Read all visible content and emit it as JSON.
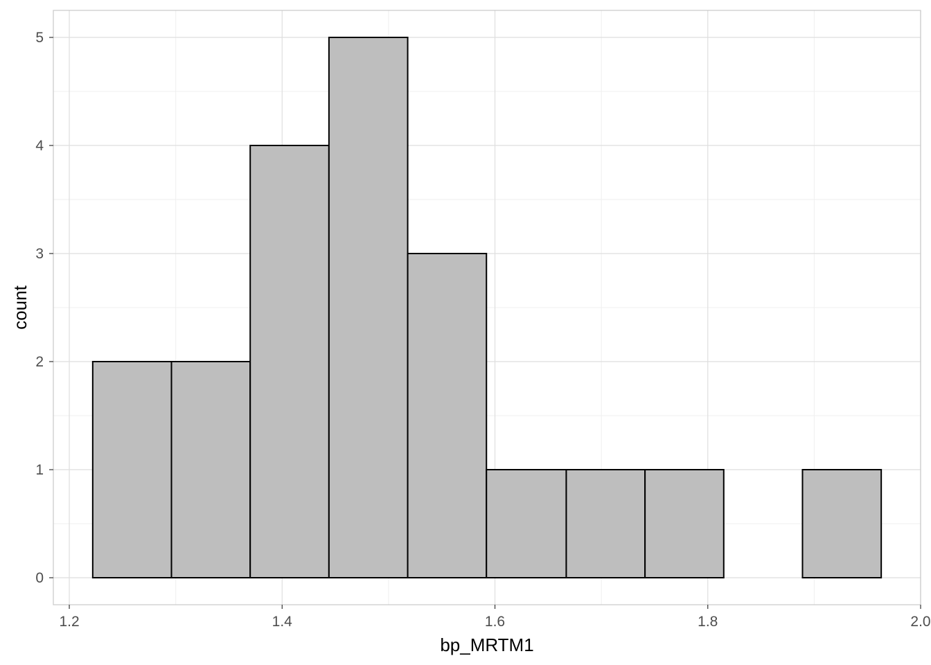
{
  "chart_data": {
    "type": "bar",
    "xlabel": "bp_MRTM1",
    "ylabel": "count",
    "xlim": [
      1.185,
      2.0
    ],
    "ylim": [
      -0.25,
      5.25
    ],
    "x_ticks": [
      1.2,
      1.4,
      1.6,
      1.8,
      2.0
    ],
    "x_tick_labels": [
      "1.2",
      "1.4",
      "1.6",
      "1.8",
      "2.0"
    ],
    "y_ticks": [
      0,
      1,
      2,
      3,
      4,
      5
    ],
    "y_tick_labels": [
      "0",
      "1",
      "2",
      "3",
      "4",
      "5"
    ],
    "bins": [
      {
        "x0": 1.222,
        "x1": 1.296,
        "count": 2
      },
      {
        "x0": 1.296,
        "x1": 1.37,
        "count": 2
      },
      {
        "x0": 1.37,
        "x1": 1.444,
        "count": 4
      },
      {
        "x0": 1.444,
        "x1": 1.518,
        "count": 5
      },
      {
        "x0": 1.518,
        "x1": 1.592,
        "count": 3
      },
      {
        "x0": 1.592,
        "x1": 1.667,
        "count": 1
      },
      {
        "x0": 1.667,
        "x1": 1.741,
        "count": 1
      },
      {
        "x0": 1.741,
        "x1": 1.815,
        "count": 1
      },
      {
        "x0": 1.815,
        "x1": 1.889,
        "count": 0
      },
      {
        "x0": 1.889,
        "x1": 1.963,
        "count": 1
      }
    ],
    "grid": true,
    "colors": {
      "bar_fill": "#bebebe",
      "bar_stroke": "#000000",
      "grid_major": "#dedede",
      "grid_minor": "#efefef",
      "panel_border": "#c8c8c8",
      "tick_label": "#4d4d4d"
    }
  }
}
